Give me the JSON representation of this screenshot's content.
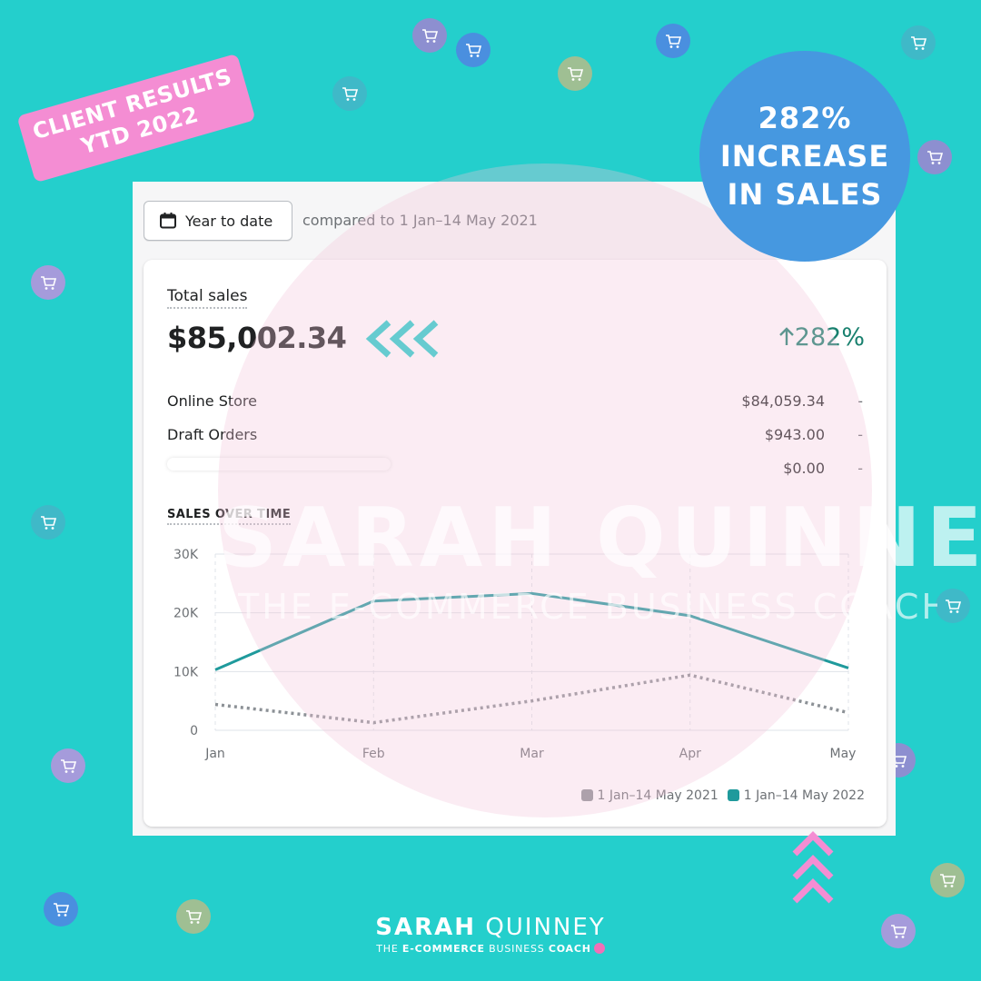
{
  "tag": {
    "line1": "CLIENT RESULTS",
    "line2": "YTD 2022"
  },
  "badge": {
    "line1": "282%",
    "line2": "INCREASE",
    "line3": "IN SALES"
  },
  "filter": {
    "date_range_label": "Year to date",
    "compare_text": "compared to 1 Jan–14 May 2021"
  },
  "total_sales": {
    "label": "Total sales",
    "value": "$85,002.34",
    "change": "282%",
    "rows": [
      {
        "label": "Online Store",
        "value": "$84,059.34",
        "dash": "-"
      },
      {
        "label": "Draft Orders",
        "value": "$943.00",
        "dash": "-"
      },
      {
        "label": "",
        "value": "$0.00",
        "dash": "-"
      }
    ]
  },
  "chart_title": "SALES OVER TIME",
  "chart_data": {
    "type": "line",
    "categories": [
      "Jan",
      "Feb",
      "Mar",
      "Apr",
      "May"
    ],
    "y_ticks": [
      "0",
      "10K",
      "20K",
      "30K"
    ],
    "ylim": [
      0,
      30000
    ],
    "series": [
      {
        "name": "1 Jan–14 May 2021",
        "values": [
          4400,
          1300,
          5000,
          9400,
          3000
        ],
        "color": "#8c9196",
        "style": "dotted"
      },
      {
        "name": "1 Jan–14 May 2022",
        "values": [
          10300,
          22000,
          23300,
          19500,
          10600
        ],
        "color": "#1f9a9c",
        "style": "solid"
      }
    ],
    "grid": true,
    "legend": "bottom-right"
  },
  "watermark": {
    "name": "SARAH QUINNEY",
    "sub": "THE E-COMMERCE BUSINESS COACH"
  },
  "brand": {
    "first": "SARAH",
    "last": "QUINNEY",
    "sub_pre": "THE",
    "sub_mid": "E-COMMERCE",
    "sub_post": "BUSINESS",
    "sub_end": "COACH"
  },
  "colors": {
    "background": "#24cfcc",
    "accent_pink": "#f48dd3",
    "badge_blue": "#4698e0",
    "positive_green": "#18806e"
  },
  "icons": [
    "shopping-cart-icon",
    "calendar-icon",
    "chevron-left-icon",
    "chevron-up-icon",
    "arrow-up-icon"
  ]
}
